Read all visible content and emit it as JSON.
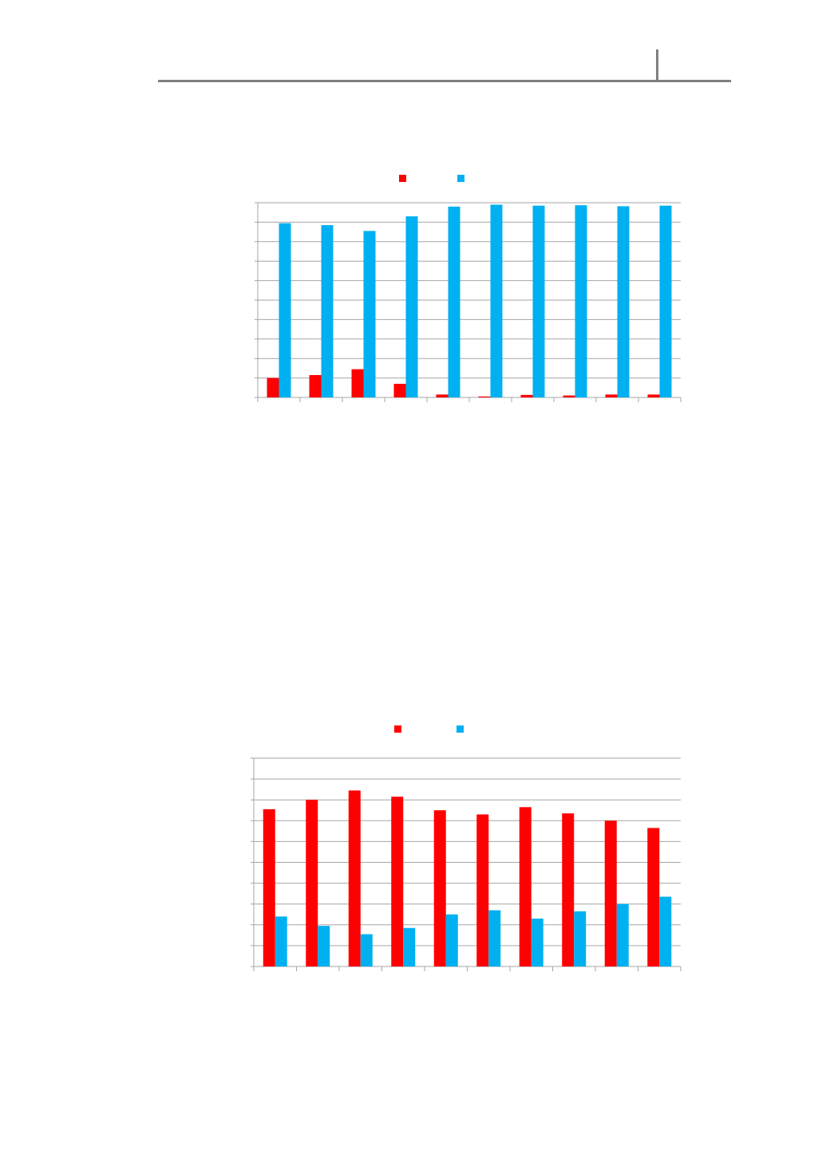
{
  "colors": {
    "series_a": "#ff0000",
    "series_b": "#00b0f0",
    "grid": "#a6a6a6",
    "header_rule": "#7f7f7f"
  },
  "chart_data": [
    {
      "type": "bar",
      "title": "",
      "xlabel": "",
      "ylabel": "",
      "categories": [
        "",
        "",
        "",
        "",
        "",
        "",
        "",
        "",
        "",
        ""
      ],
      "ylim": [
        0,
        100
      ],
      "grid": true,
      "legend": "top",
      "series": [
        {
          "color": "#ff0000",
          "values": [
            10,
            11.5,
            14.5,
            7,
            1.5,
            0.5,
            1.3,
            1,
            1.5,
            1.5
          ]
        },
        {
          "color": "#00b0f0",
          "values": [
            89.5,
            88.5,
            85.5,
            93,
            98,
            99,
            98.5,
            98.7,
            98.2,
            98.5
          ]
        }
      ]
    },
    {
      "type": "bar",
      "title": "",
      "xlabel": "",
      "ylabel": "",
      "categories": [
        "",
        "",
        "",
        "",
        "",
        "",
        "",
        "",
        "",
        ""
      ],
      "ylim": [
        0,
        100
      ],
      "grid": true,
      "legend": "top",
      "series": [
        {
          "color": "#ff0000",
          "values": [
            75.5,
            80,
            84.5,
            81.5,
            75,
            73,
            76.5,
            73.5,
            70,
            66.5
          ]
        },
        {
          "color": "#00b0f0",
          "values": [
            24,
            19.5,
            15.5,
            18.5,
            25,
            27,
            23,
            26.5,
            30,
            33.5
          ]
        }
      ]
    }
  ]
}
